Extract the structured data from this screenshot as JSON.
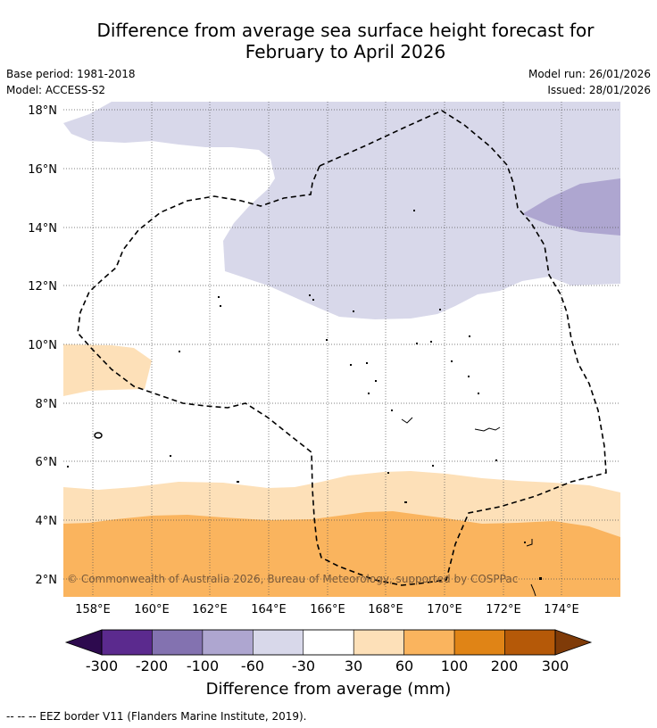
{
  "title": {
    "line1": "Difference from average sea surface height forecast for",
    "line2": "February to April 2026"
  },
  "meta": {
    "base_period": "Base period: 1981-2018",
    "model": "Model: ACCESS-S2",
    "model_run": "Model run: 26/01/2026",
    "issued": "Issued: 28/01/2026"
  },
  "map": {
    "lat_labels": [
      "18°N",
      "16°N",
      "14°N",
      "12°N",
      "10°N",
      "8°N",
      "6°N",
      "4°N",
      "2°N"
    ],
    "lon_labels": [
      "158°E",
      "160°E",
      "162°E",
      "164°E",
      "166°E",
      "168°E",
      "170°E",
      "172°E",
      "174°E"
    ],
    "copyright": "© Commonwealth of Australia 2026, Bureau of Meteorology, supported by COSPPac"
  },
  "colorbar": {
    "title": "Difference from average (mm)",
    "tick_labels": [
      "-300",
      "-200",
      "-100",
      "-60",
      "-30",
      "30",
      "60",
      "100",
      "200",
      "300"
    ],
    "colors": [
      "#5b2a8e",
      "#8372b0",
      "#aea6d0",
      "#d8d8ea",
      "#ffffff",
      "#fde0b8",
      "#fab45e",
      "#e08416",
      "#b55908"
    ],
    "under_color": "#2d0a4e",
    "over_color": "#7f3b08"
  },
  "footer": {
    "eez_legend": "--  --  -- EEZ border V11 (Flanders Marine Institute, 2019)."
  }
}
